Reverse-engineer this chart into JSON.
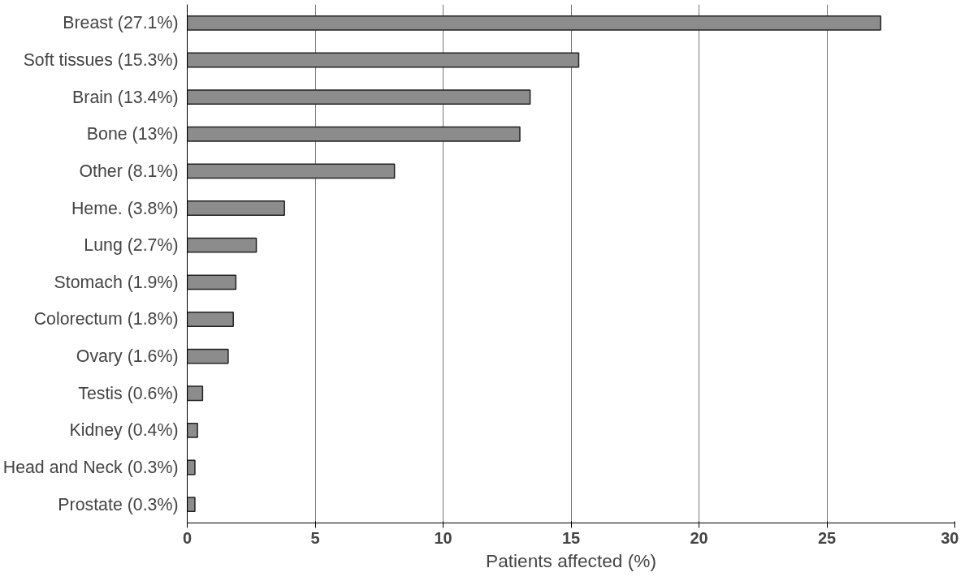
{
  "chart_data": {
    "type": "bar",
    "orientation": "horizontal",
    "xlabel": "Patients affected (%)",
    "categories": [
      "Breast (27.1%)",
      "Soft tissues (15.3%)",
      "Brain (13.4%)",
      "Bone (13%)",
      "Other (8.1%)",
      "Heme. (3.8%)",
      "Lung (2.7%)",
      "Stomach (1.9%)",
      "Colorectum (1.8%)",
      "Ovary (1.6%)",
      "Testis (0.6%)",
      "Kidney (0.4%)",
      "Head and Neck (0.3%)",
      "Prostate (0.3%)"
    ],
    "values": [
      27.1,
      15.3,
      13.4,
      13,
      8.1,
      3.8,
      2.7,
      1.9,
      1.8,
      1.6,
      0.6,
      0.4,
      0.3,
      0.3
    ],
    "color": "#8c8c8c",
    "xlim": [
      0,
      30
    ],
    "xticks": [
      0,
      5,
      10,
      15,
      20,
      25,
      30
    ],
    "grid": "x"
  }
}
